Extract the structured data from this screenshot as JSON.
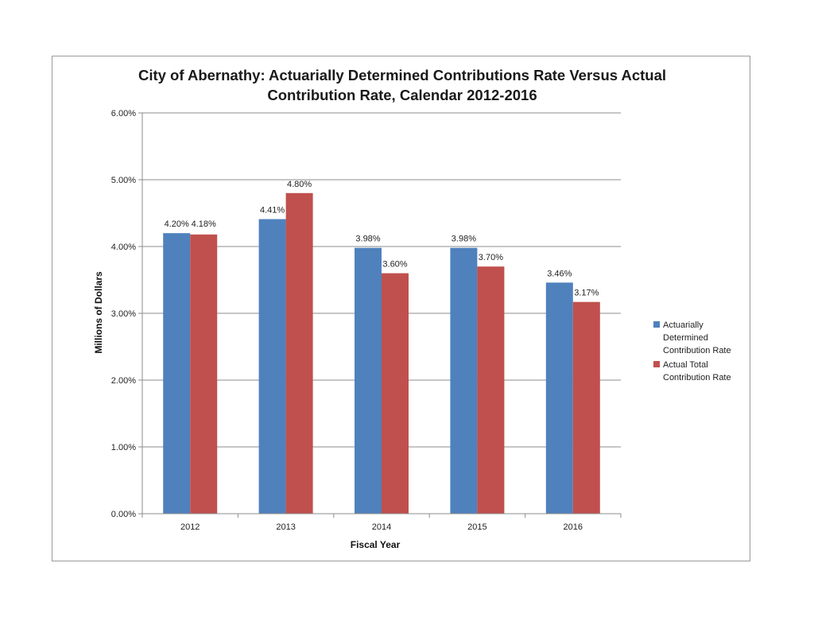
{
  "chart_data": {
    "type": "bar",
    "title": [
      "City of Abernathy: Actuarially Determined Contributions Rate Versus Actual",
      "Contribution Rate, Calendar 2012-2016"
    ],
    "xlabel": "Fiscal Year",
    "ylabel": "Millions of Dollars",
    "categories": [
      "2012",
      "2013",
      "2014",
      "2015",
      "2016"
    ],
    "ylim": [
      0,
      6
    ],
    "yticks": [
      0,
      1,
      2,
      3,
      4,
      5,
      6
    ],
    "ytick_labels": [
      "0.00%",
      "1.00%",
      "2.00%",
      "3.00%",
      "4.00%",
      "5.00%",
      "6.00%"
    ],
    "grid": true,
    "legend_position": "right",
    "series": [
      {
        "name": "Actuarially Determined Contribution Rate",
        "legend_lines": [
          "Actuarially",
          "Determined",
          "Contribution Rate"
        ],
        "color": "#4f81bd",
        "values": [
          4.2,
          4.41,
          3.98,
          3.98,
          3.46
        ],
        "labels": [
          "4.20%",
          "4.41%",
          "3.98%",
          "3.98%",
          "3.46%"
        ]
      },
      {
        "name": "Actual Total Contribution Rate",
        "legend_lines": [
          "Actual Total",
          "Contribution Rate"
        ],
        "color": "#c0504d",
        "values": [
          4.18,
          4.8,
          3.6,
          3.7,
          3.17
        ],
        "labels": [
          "4.18%",
          "4.80%",
          "3.60%",
          "3.70%",
          "3.17%"
        ]
      }
    ]
  }
}
